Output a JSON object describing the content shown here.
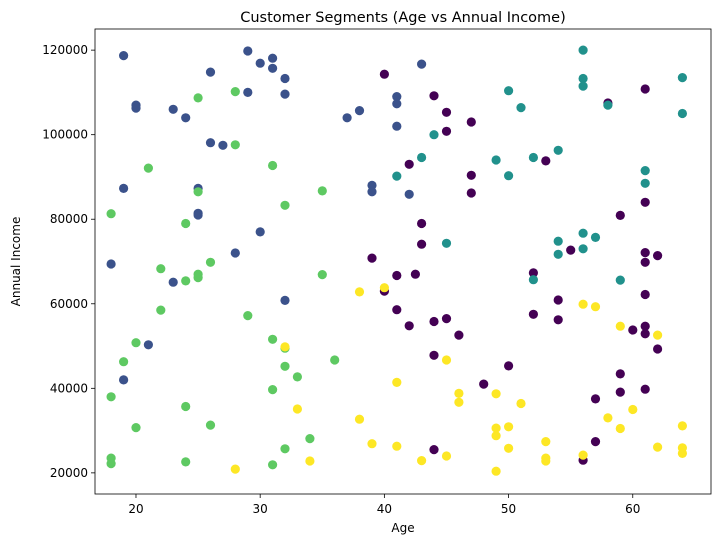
{
  "chart_data": {
    "type": "scatter",
    "title": "Customer Segments (Age vs Annual Income)",
    "xlabel": "Age",
    "ylabel": "Annual Income",
    "xlim": [
      16.7,
      66.3
    ],
    "ylim": [
      15000,
      125000
    ],
    "xticks": [
      20,
      30,
      40,
      50,
      60
    ],
    "yticks": [
      20000,
      40000,
      60000,
      80000,
      100000,
      120000
    ],
    "xtick_labels": [
      "20",
      "30",
      "40",
      "50",
      "60"
    ],
    "ytick_labels": [
      "20000",
      "40000",
      "60000",
      "80000",
      "100000",
      "120000"
    ],
    "grid": false,
    "legend": "none",
    "colors": {
      "cluster_0": "#440154",
      "cluster_1": "#3b528b",
      "cluster_2": "#21918c",
      "cluster_3": "#5ec962",
      "cluster_4": "#fde725"
    },
    "series": [
      {
        "color": "#440154",
        "points": [
          [
            40,
            114300
          ],
          [
            44,
            109200
          ],
          [
            45,
            105300
          ],
          [
            45,
            100800
          ],
          [
            47,
            103000
          ],
          [
            42,
            93000
          ],
          [
            53,
            93800
          ],
          [
            47,
            90400
          ],
          [
            47,
            86200
          ],
          [
            43,
            79000
          ],
          [
            39,
            70800
          ],
          [
            43,
            74100
          ],
          [
            41,
            66700
          ],
          [
            42.5,
            67000
          ],
          [
            40,
            63000
          ],
          [
            41,
            58600
          ],
          [
            42,
            54800
          ],
          [
            44,
            55800
          ],
          [
            45,
            56500
          ],
          [
            46,
            52600
          ],
          [
            44,
            47800
          ],
          [
            48,
            41000
          ],
          [
            50,
            45300
          ],
          [
            44,
            25500
          ],
          [
            52,
            67300
          ],
          [
            52,
            57500
          ],
          [
            54,
            60900
          ],
          [
            55,
            72700
          ],
          [
            54,
            56200
          ],
          [
            56,
            23000
          ],
          [
            57,
            27400
          ],
          [
            57,
            37500
          ],
          [
            58,
            107500
          ],
          [
            59,
            80900
          ],
          [
            59,
            43400
          ],
          [
            59,
            39100
          ],
          [
            60,
            53800
          ],
          [
            61,
            110800
          ],
          [
            61,
            84000
          ],
          [
            61,
            72100
          ],
          [
            61,
            69800
          ],
          [
            61,
            62200
          ],
          [
            61,
            54700
          ],
          [
            61,
            52900
          ],
          [
            61,
            39800
          ],
          [
            62,
            71400
          ],
          [
            62,
            49300
          ]
        ]
      },
      {
        "color": "#3b528b",
        "points": [
          [
            18,
            69400
          ],
          [
            19,
            118700
          ],
          [
            19,
            87300
          ],
          [
            19,
            42000
          ],
          [
            20,
            107000
          ],
          [
            20,
            106300
          ],
          [
            21,
            50300
          ],
          [
            23,
            106000
          ],
          [
            23,
            65100
          ],
          [
            24,
            104000
          ],
          [
            25,
            87300
          ],
          [
            25,
            81400
          ],
          [
            25,
            81000
          ],
          [
            26,
            114800
          ],
          [
            26,
            98100
          ],
          [
            27,
            97500
          ],
          [
            28,
            72000
          ],
          [
            29,
            119800
          ],
          [
            29,
            110000
          ],
          [
            30,
            116900
          ],
          [
            30,
            77000
          ],
          [
            31,
            118100
          ],
          [
            31,
            115700
          ],
          [
            32,
            113300
          ],
          [
            32,
            109600
          ],
          [
            32,
            60800
          ],
          [
            37,
            104000
          ],
          [
            38,
            105700
          ],
          [
            39,
            88000
          ],
          [
            39,
            86500
          ],
          [
            41,
            109000
          ],
          [
            41,
            107300
          ],
          [
            41,
            102000
          ],
          [
            42,
            85900
          ],
          [
            43,
            116700
          ]
        ]
      },
      {
        "color": "#21918c",
        "points": [
          [
            41,
            90200
          ],
          [
            43,
            94600
          ],
          [
            44,
            100000
          ],
          [
            45,
            74300
          ],
          [
            49,
            94000
          ],
          [
            50,
            110400
          ],
          [
            50,
            90300
          ],
          [
            51,
            106400
          ],
          [
            52,
            94600
          ],
          [
            52,
            65700
          ],
          [
            54,
            96300
          ],
          [
            54,
            74800
          ],
          [
            54,
            71700
          ],
          [
            56,
            120000
          ],
          [
            56,
            113300
          ],
          [
            56,
            111500
          ],
          [
            56,
            76700
          ],
          [
            56,
            73000
          ],
          [
            57,
            75700
          ],
          [
            58,
            107000
          ],
          [
            59,
            65600
          ],
          [
            61,
            91500
          ],
          [
            61,
            88500
          ],
          [
            64,
            113500
          ],
          [
            64,
            105000
          ]
        ]
      },
      {
        "color": "#5ec962",
        "points": [
          [
            18,
            81300
          ],
          [
            18,
            38000
          ],
          [
            18,
            23500
          ],
          [
            18,
            22200
          ],
          [
            19,
            46300
          ],
          [
            20,
            50800
          ],
          [
            20,
            30700
          ],
          [
            21,
            92100
          ],
          [
            22,
            68300
          ],
          [
            22,
            58500
          ],
          [
            24,
            79000
          ],
          [
            24,
            65400
          ],
          [
            24,
            35700
          ],
          [
            24,
            22600
          ],
          [
            25,
            108700
          ],
          [
            25,
            86500
          ],
          [
            25,
            67000
          ],
          [
            25,
            66200
          ],
          [
            26,
            69800
          ],
          [
            26,
            31300
          ],
          [
            28,
            110200
          ],
          [
            28,
            97600
          ],
          [
            29,
            57200
          ],
          [
            31,
            92700
          ],
          [
            31,
            51600
          ],
          [
            31,
            39700
          ],
          [
            31,
            21900
          ],
          [
            32,
            83300
          ],
          [
            32,
            49500
          ],
          [
            32,
            45200
          ],
          [
            32,
            25700
          ],
          [
            33,
            42700
          ],
          [
            34,
            28100
          ],
          [
            35,
            86700
          ],
          [
            35,
            66900
          ],
          [
            36,
            46700
          ]
        ]
      },
      {
        "color": "#fde725",
        "points": [
          [
            28,
            20900
          ],
          [
            32,
            49800
          ],
          [
            33,
            35100
          ],
          [
            34,
            22800
          ],
          [
            38,
            62800
          ],
          [
            38,
            32700
          ],
          [
            39,
            26900
          ],
          [
            40,
            63800
          ],
          [
            41,
            41400
          ],
          [
            41,
            26300
          ],
          [
            43,
            22900
          ],
          [
            45,
            46700
          ],
          [
            45,
            24000
          ],
          [
            46,
            38800
          ],
          [
            46,
            36700
          ],
          [
            49,
            38700
          ],
          [
            49,
            30600
          ],
          [
            49,
            28800
          ],
          [
            49,
            20400
          ],
          [
            50,
            30900
          ],
          [
            50,
            25800
          ],
          [
            51,
            36400
          ],
          [
            53,
            27400
          ],
          [
            53,
            23500
          ],
          [
            53,
            22800
          ],
          [
            56,
            59900
          ],
          [
            56,
            24200
          ],
          [
            57,
            59300
          ],
          [
            58,
            33000
          ],
          [
            59,
            54700
          ],
          [
            59,
            30500
          ],
          [
            60,
            35000
          ],
          [
            62,
            52600
          ],
          [
            62,
            26100
          ],
          [
            64,
            31100
          ],
          [
            64,
            25900
          ],
          [
            64,
            24600
          ]
        ]
      }
    ]
  }
}
